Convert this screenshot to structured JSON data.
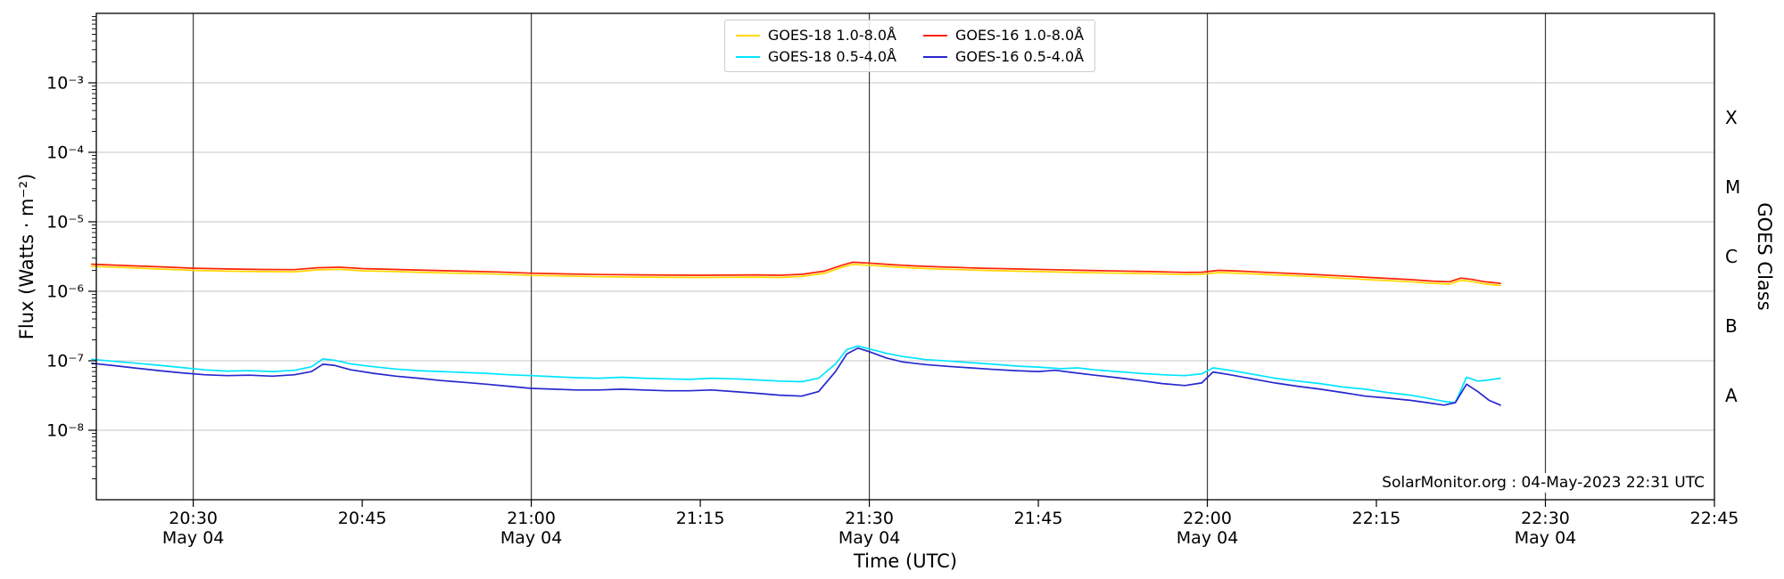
{
  "chart_data": {
    "type": "line",
    "title": "",
    "xlabel": "Time (UTC)",
    "ylabel": "Flux (Watts · m⁻²)",
    "ylabel_right": "GOES Class",
    "annotation": "SolarMonitor.org : 04-May-2023 22:31 UTC",
    "x_unit": "minutes after 2023-05-04 20:00 UTC",
    "xlim": [
      21.4,
      165
    ],
    "ylim": [
      1e-09,
      0.01
    ],
    "grid": {
      "h_color": "#c4c4c4",
      "v_color": "#3c3c3c",
      "grid_on": true
    },
    "legend_position": "upper center",
    "x_ticks": [
      {
        "t": 30,
        "label": "20:30",
        "date": "May 04"
      },
      {
        "t": 45,
        "label": "20:45"
      },
      {
        "t": 60,
        "label": "21:00",
        "date": "May 04"
      },
      {
        "t": 75,
        "label": "21:15"
      },
      {
        "t": 90,
        "label": "21:30",
        "date": "May 04"
      },
      {
        "t": 105,
        "label": "21:45"
      },
      {
        "t": 120,
        "label": "22:00",
        "date": "May 04"
      },
      {
        "t": 135,
        "label": "22:15"
      },
      {
        "t": 150,
        "label": "22:30",
        "date": "May 04"
      },
      {
        "t": 165,
        "label": "22:45"
      }
    ],
    "y_ticks": [
      {
        "value": 0.001,
        "label": "10⁻³"
      },
      {
        "value": 0.0001,
        "label": "10⁻⁴"
      },
      {
        "value": 1e-05,
        "label": "10⁻⁵"
      },
      {
        "value": 1e-06,
        "label": "10⁻⁶"
      },
      {
        "value": 1e-07,
        "label": "10⁻⁷"
      },
      {
        "value": 1e-08,
        "label": "10⁻⁸"
      }
    ],
    "right_ticks": [
      {
        "value": 0.000316,
        "label": "X"
      },
      {
        "value": 3.16e-05,
        "label": "M"
      },
      {
        "value": 3.16e-06,
        "label": "C"
      },
      {
        "value": 3.16e-07,
        "label": "B"
      },
      {
        "value": 3.16e-08,
        "label": "A"
      }
    ],
    "series": [
      {
        "name": "GOES-18 1.0-8.0Å",
        "color": "#ffd700",
        "points": [
          [
            21,
            2.28e-06
          ],
          [
            24,
            2.19e-06
          ],
          [
            27,
            2.09e-06
          ],
          [
            30,
            2e-06
          ],
          [
            33,
            1.95e-06
          ],
          [
            36,
            1.92e-06
          ],
          [
            39,
            1.91e-06
          ],
          [
            41,
            2.03e-06
          ],
          [
            43,
            2.07e-06
          ],
          [
            45,
            1.97e-06
          ],
          [
            48,
            1.92e-06
          ],
          [
            51,
            1.86e-06
          ],
          [
            54,
            1.81e-06
          ],
          [
            57,
            1.77e-06
          ],
          [
            60,
            1.69e-06
          ],
          [
            63,
            1.66e-06
          ],
          [
            66,
            1.62e-06
          ],
          [
            70,
            1.6e-06
          ],
          [
            75,
            1.58e-06
          ],
          [
            80,
            1.6e-06
          ],
          [
            82,
            1.58e-06
          ],
          [
            84,
            1.63e-06
          ],
          [
            86,
            1.81e-06
          ],
          [
            87.5,
            2.19e-06
          ],
          [
            88.5,
            2.44e-06
          ],
          [
            90,
            2.37e-06
          ],
          [
            92,
            2.25e-06
          ],
          [
            94,
            2.16e-06
          ],
          [
            96,
            2.09e-06
          ],
          [
            98,
            2.05e-06
          ],
          [
            100,
            2e-06
          ],
          [
            103,
            1.95e-06
          ],
          [
            106,
            1.91e-06
          ],
          [
            109,
            1.86e-06
          ],
          [
            112,
            1.82e-06
          ],
          [
            115,
            1.79e-06
          ],
          [
            118,
            1.74e-06
          ],
          [
            119.5,
            1.75e-06
          ],
          [
            121,
            1.86e-06
          ],
          [
            123,
            1.81e-06
          ],
          [
            126,
            1.72e-06
          ],
          [
            129,
            1.64e-06
          ],
          [
            132,
            1.54e-06
          ],
          [
            135,
            1.45e-06
          ],
          [
            138,
            1.37e-06
          ],
          [
            140,
            1.3e-06
          ],
          [
            141.5,
            1.27e-06
          ],
          [
            142.5,
            1.44e-06
          ],
          [
            143.5,
            1.38e-06
          ],
          [
            144.5,
            1.28e-06
          ],
          [
            146,
            1.21e-06
          ]
        ]
      },
      {
        "name": "GOES-18 0.5-4.0Å",
        "color": "#00e5ff",
        "points": [
          [
            21,
            1.05e-07
          ],
          [
            23,
            9.8e-08
          ],
          [
            25,
            9.2e-08
          ],
          [
            27,
            8.6e-08
          ],
          [
            29,
            8e-08
          ],
          [
            31,
            7.4e-08
          ],
          [
            33,
            7.1e-08
          ],
          [
            35,
            7.2e-08
          ],
          [
            37,
            7e-08
          ],
          [
            39,
            7.3e-08
          ],
          [
            40.5,
            8.2e-08
          ],
          [
            41.5,
            1.06e-07
          ],
          [
            42.5,
            1.02e-07
          ],
          [
            44,
            9e-08
          ],
          [
            46,
            8.2e-08
          ],
          [
            48,
            7.6e-08
          ],
          [
            50,
            7.2e-08
          ],
          [
            52,
            7e-08
          ],
          [
            54,
            6.8e-08
          ],
          [
            56,
            6.6e-08
          ],
          [
            58,
            6.3e-08
          ],
          [
            60,
            6.1e-08
          ],
          [
            62,
            5.9e-08
          ],
          [
            64,
            5.7e-08
          ],
          [
            66,
            5.6e-08
          ],
          [
            68,
            5.8e-08
          ],
          [
            70,
            5.6e-08
          ],
          [
            72,
            5.5e-08
          ],
          [
            74,
            5.4e-08
          ],
          [
            76,
            5.6e-08
          ],
          [
            78,
            5.5e-08
          ],
          [
            80,
            5.3e-08
          ],
          [
            82,
            5.1e-08
          ],
          [
            84,
            5e-08
          ],
          [
            85.5,
            5.6e-08
          ],
          [
            87,
            9e-08
          ],
          [
            88,
            1.45e-07
          ],
          [
            89,
            1.63e-07
          ],
          [
            90,
            1.48e-07
          ],
          [
            91.5,
            1.28e-07
          ],
          [
            93,
            1.15e-07
          ],
          [
            95,
            1.04e-07
          ],
          [
            97,
            9.9e-08
          ],
          [
            99,
            9.4e-08
          ],
          [
            101,
            8.9e-08
          ],
          [
            103,
            8.4e-08
          ],
          [
            105,
            8.1e-08
          ],
          [
            107,
            7.7e-08
          ],
          [
            108.5,
            7.9e-08
          ],
          [
            110,
            7.4e-08
          ],
          [
            112,
            7e-08
          ],
          [
            114,
            6.6e-08
          ],
          [
            116,
            6.3e-08
          ],
          [
            118,
            6.1e-08
          ],
          [
            119.5,
            6.5e-08
          ],
          [
            120.5,
            7.9e-08
          ],
          [
            122,
            7.3e-08
          ],
          [
            124,
            6.4e-08
          ],
          [
            126,
            5.6e-08
          ],
          [
            128,
            5.1e-08
          ],
          [
            130,
            4.7e-08
          ],
          [
            132,
            4.2e-08
          ],
          [
            134,
            3.9e-08
          ],
          [
            136,
            3.5e-08
          ],
          [
            138,
            3.2e-08
          ],
          [
            139.5,
            2.9e-08
          ],
          [
            141,
            2.6e-08
          ],
          [
            142,
            2.5e-08
          ],
          [
            143,
            5.8e-08
          ],
          [
            144,
            5.1e-08
          ],
          [
            145,
            5.3e-08
          ],
          [
            146,
            5.6e-08
          ]
        ]
      },
      {
        "name": "GOES-16 1.0-8.0Å",
        "color": "#ff2200",
        "points": [
          [
            21,
            2.45e-06
          ],
          [
            24,
            2.35e-06
          ],
          [
            27,
            2.25e-06
          ],
          [
            30,
            2.15e-06
          ],
          [
            33,
            2.1e-06
          ],
          [
            36,
            2.06e-06
          ],
          [
            39,
            2.05e-06
          ],
          [
            41,
            2.18e-06
          ],
          [
            43,
            2.22e-06
          ],
          [
            45,
            2.12e-06
          ],
          [
            48,
            2.06e-06
          ],
          [
            51,
            2e-06
          ],
          [
            54,
            1.95e-06
          ],
          [
            57,
            1.9e-06
          ],
          [
            60,
            1.82e-06
          ],
          [
            63,
            1.78e-06
          ],
          [
            66,
            1.74e-06
          ],
          [
            70,
            1.72e-06
          ],
          [
            75,
            1.7e-06
          ],
          [
            80,
            1.72e-06
          ],
          [
            82,
            1.7e-06
          ],
          [
            84,
            1.75e-06
          ],
          [
            86,
            1.95e-06
          ],
          [
            87.5,
            2.35e-06
          ],
          [
            88.5,
            2.62e-06
          ],
          [
            90,
            2.55e-06
          ],
          [
            92,
            2.42e-06
          ],
          [
            94,
            2.32e-06
          ],
          [
            96,
            2.25e-06
          ],
          [
            98,
            2.2e-06
          ],
          [
            100,
            2.15e-06
          ],
          [
            103,
            2.1e-06
          ],
          [
            106,
            2.05e-06
          ],
          [
            109,
            2e-06
          ],
          [
            112,
            1.96e-06
          ],
          [
            115,
            1.92e-06
          ],
          [
            118,
            1.87e-06
          ],
          [
            119.5,
            1.88e-06
          ],
          [
            121,
            2e-06
          ],
          [
            123,
            1.95e-06
          ],
          [
            126,
            1.85e-06
          ],
          [
            129,
            1.76e-06
          ],
          [
            132,
            1.66e-06
          ],
          [
            135,
            1.56e-06
          ],
          [
            138,
            1.47e-06
          ],
          [
            140,
            1.4e-06
          ],
          [
            141.5,
            1.37e-06
          ],
          [
            142.5,
            1.55e-06
          ],
          [
            143.5,
            1.48e-06
          ],
          [
            144.5,
            1.38e-06
          ],
          [
            146,
            1.3e-06
          ]
        ]
      },
      {
        "name": "GOES-16 0.5-4.0Å",
        "color": "#2727cf",
        "points": [
          [
            21,
            9.2e-08
          ],
          [
            23,
            8.5e-08
          ],
          [
            25,
            7.8e-08
          ],
          [
            27,
            7.2e-08
          ],
          [
            29,
            6.7e-08
          ],
          [
            31,
            6.3e-08
          ],
          [
            33,
            6.1e-08
          ],
          [
            35,
            6.2e-08
          ],
          [
            37,
            6e-08
          ],
          [
            39,
            6.3e-08
          ],
          [
            40.5,
            7e-08
          ],
          [
            41.5,
            8.9e-08
          ],
          [
            42.5,
            8.6e-08
          ],
          [
            44,
            7.4e-08
          ],
          [
            46,
            6.6e-08
          ],
          [
            48,
            6e-08
          ],
          [
            50,
            5.6e-08
          ],
          [
            52,
            5.2e-08
          ],
          [
            54,
            4.9e-08
          ],
          [
            56,
            4.6e-08
          ],
          [
            58,
            4.3e-08
          ],
          [
            60,
            4e-08
          ],
          [
            62,
            3.9e-08
          ],
          [
            64,
            3.8e-08
          ],
          [
            66,
            3.8e-08
          ],
          [
            68,
            3.9e-08
          ],
          [
            70,
            3.8e-08
          ],
          [
            72,
            3.7e-08
          ],
          [
            74,
            3.7e-08
          ],
          [
            76,
            3.8e-08
          ],
          [
            78,
            3.6e-08
          ],
          [
            80,
            3.4e-08
          ],
          [
            82,
            3.2e-08
          ],
          [
            84,
            3.1e-08
          ],
          [
            85.5,
            3.6e-08
          ],
          [
            87,
            7e-08
          ],
          [
            88,
            1.25e-07
          ],
          [
            89,
            1.52e-07
          ],
          [
            90,
            1.35e-07
          ],
          [
            91.5,
            1.1e-07
          ],
          [
            93,
            9.6e-08
          ],
          [
            95,
            8.8e-08
          ],
          [
            97,
            8.3e-08
          ],
          [
            99,
            7.9e-08
          ],
          [
            101,
            7.5e-08
          ],
          [
            103,
            7.2e-08
          ],
          [
            105,
            7e-08
          ],
          [
            106.5,
            7.3e-08
          ],
          [
            108,
            6.8e-08
          ],
          [
            110,
            6.2e-08
          ],
          [
            112,
            5.7e-08
          ],
          [
            114,
            5.2e-08
          ],
          [
            116,
            4.7e-08
          ],
          [
            118,
            4.4e-08
          ],
          [
            119.5,
            4.8e-08
          ],
          [
            120.5,
            6.9e-08
          ],
          [
            122,
            6.3e-08
          ],
          [
            124,
            5.5e-08
          ],
          [
            126,
            4.8e-08
          ],
          [
            128,
            4.3e-08
          ],
          [
            130,
            3.9e-08
          ],
          [
            132,
            3.5e-08
          ],
          [
            134,
            3.1e-08
          ],
          [
            136,
            2.9e-08
          ],
          [
            138,
            2.7e-08
          ],
          [
            139.5,
            2.5e-08
          ],
          [
            141,
            2.3e-08
          ],
          [
            142,
            2.5e-08
          ],
          [
            143,
            4.6e-08
          ],
          [
            144,
            3.6e-08
          ],
          [
            145,
            2.7e-08
          ],
          [
            146,
            2.3e-08
          ]
        ]
      }
    ]
  }
}
